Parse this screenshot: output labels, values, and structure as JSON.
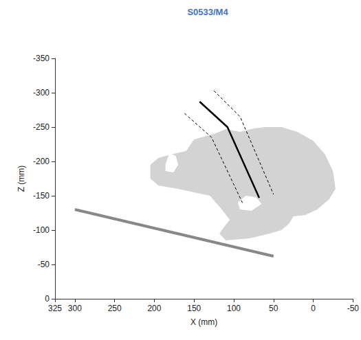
{
  "chart_data": {
    "type": "line",
    "title": "S0533/M4",
    "x_label": "X (mm)",
    "y_label": "Z (mm)",
    "xlim": [
      325,
      -50
    ],
    "xticks": [
      300,
      250,
      200,
      150,
      100,
      50,
      0,
      -50
    ],
    "ylim": [
      0,
      -350
    ],
    "yticks": [
      0,
      -50,
      -100,
      -150,
      -200,
      -250,
      -300,
      -350
    ],
    "grid": false,
    "regions": [
      {
        "color": "#d3d3d3",
        "outline": [
          [
            160,
            -215
          ],
          [
            150,
            -232
          ],
          [
            125,
            -240
          ],
          [
            110,
            -247
          ],
          [
            92,
            -243
          ],
          [
            75,
            -248
          ],
          [
            60,
            -250
          ],
          [
            40,
            -250
          ],
          [
            20,
            -243
          ],
          [
            0,
            -230
          ],
          [
            -15,
            -210
          ],
          [
            -25,
            -185
          ],
          [
            -28,
            -160
          ],
          [
            -20,
            -145
          ],
          [
            -5,
            -130
          ],
          [
            10,
            -122
          ],
          [
            25,
            -120
          ],
          [
            30,
            -110
          ],
          [
            40,
            -100
          ],
          [
            55,
            -95
          ],
          [
            80,
            -88
          ],
          [
            110,
            -85
          ],
          [
            118,
            -95
          ],
          [
            112,
            -105
          ],
          [
            105,
            -115
          ],
          [
            115,
            -130
          ],
          [
            130,
            -150
          ],
          [
            150,
            -155
          ],
          [
            170,
            -160
          ],
          [
            195,
            -165
          ],
          [
            205,
            -175
          ],
          [
            205,
            -195
          ],
          [
            195,
            -205
          ],
          [
            180,
            -210
          ]
        ],
        "holes": [
          [
            [
              186,
              -196
            ],
            [
              181,
              -212
            ],
            [
              173,
              -208
            ],
            [
              170,
              -195
            ],
            [
              176,
              -184
            ],
            [
              186,
              -186
            ]
          ],
          [
            [
              95,
              -140
            ],
            [
              85,
              -150
            ],
            [
              72,
              -148
            ],
            [
              65,
              -138
            ],
            [
              78,
              -128
            ],
            [
              92,
              -130
            ]
          ]
        ]
      }
    ],
    "series": [
      {
        "color": "#888888",
        "line_style": "thick",
        "x": [
          300,
          50
        ],
        "values": [
          -130,
          -62
        ]
      },
      {
        "color": "#000000",
        "line_style": "solid",
        "x": [
          143,
          108,
          68
        ],
        "values": [
          -287,
          -250,
          -147
        ]
      },
      {
        "color": "#000000",
        "line_style": "dashed",
        "x": [
          162,
          128,
          88
        ],
        "values": [
          -270,
          -235,
          -137
        ]
      },
      {
        "color": "#000000",
        "line_style": "dashed",
        "x": [
          125,
          92,
          50
        ],
        "values": [
          -303,
          -265,
          -152
        ]
      }
    ]
  }
}
